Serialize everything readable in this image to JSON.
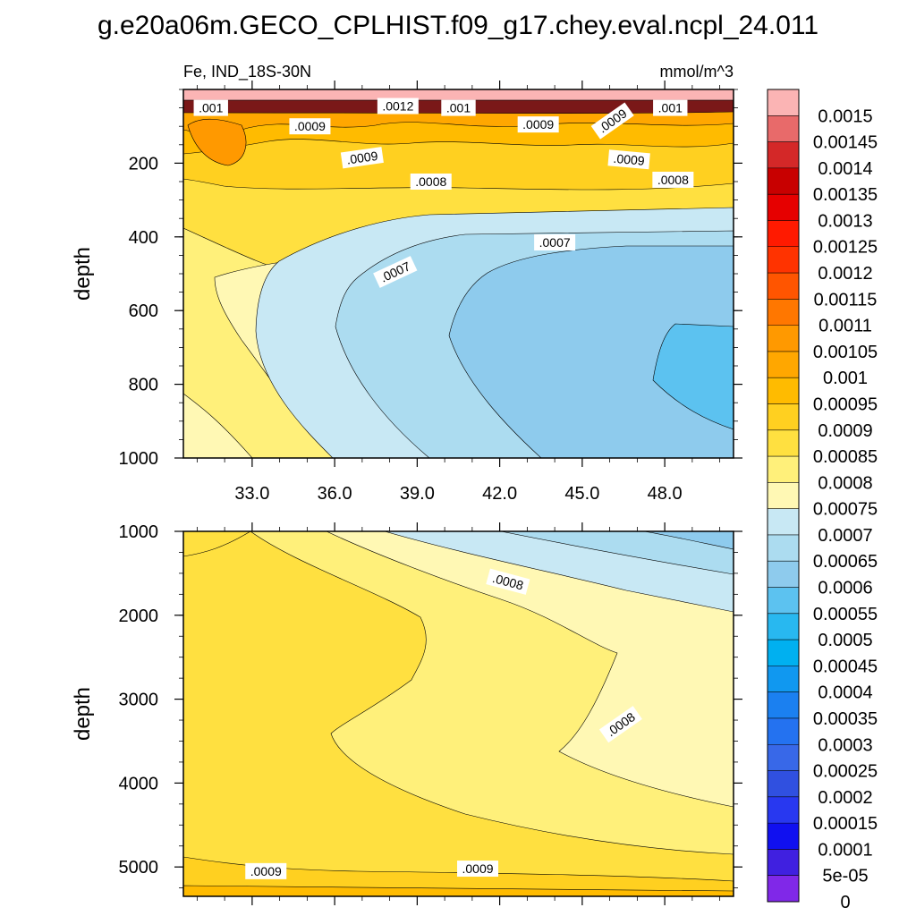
{
  "title": "g.e20a06m.GECO_CPLHIST.f09_g17.chey.eval.ncpl_24.011",
  "chart_data": [
    {
      "type": "contour",
      "panel": "upper",
      "variable_label": "Fe, IND_18S-30N",
      "units_label": "mmol/m^3",
      "xlabel": "",
      "ylabel": "depth",
      "xlim": [
        30.5,
        50.5
      ],
      "ylim": [
        1000,
        0
      ],
      "x_ticks": [
        "33.0",
        "36.0",
        "39.0",
        "42.0",
        "45.0",
        "48.0"
      ],
      "x_tick_values": [
        33,
        36,
        39,
        42,
        45,
        48
      ],
      "y_ticks": [
        "200",
        "400",
        "600",
        "800",
        "1000"
      ],
      "y_tick_values": [
        200,
        400,
        600,
        800,
        1000
      ],
      "contour_labels": [
        {
          "text": ".001",
          "x": 31.5,
          "y": 50,
          "angle": 0
        },
        {
          "text": ".0012",
          "x": 38.3,
          "y": 45,
          "angle": 0
        },
        {
          "text": ".001",
          "x": 40.5,
          "y": 50,
          "angle": 0
        },
        {
          "text": ".0009",
          "x": 35.1,
          "y": 100,
          "angle": 0
        },
        {
          "text": ".0009",
          "x": 43.4,
          "y": 95,
          "angle": 0
        },
        {
          "text": ".0009",
          "x": 46.1,
          "y": 85,
          "angle": -35
        },
        {
          "text": ".001",
          "x": 48.2,
          "y": 50,
          "angle": 0
        },
        {
          "text": ".0009",
          "x": 37.0,
          "y": 185,
          "angle": -8
        },
        {
          "text": ".0009",
          "x": 46.7,
          "y": 190,
          "angle": 5
        },
        {
          "text": ".0008",
          "x": 39.5,
          "y": 250,
          "angle": 0
        },
        {
          "text": ".0008",
          "x": 48.3,
          "y": 245,
          "angle": 0
        },
        {
          "text": ".0007",
          "x": 44.0,
          "y": 415,
          "angle": 0
        },
        {
          "text": ".0007",
          "x": 38.2,
          "y": 495,
          "angle": -25
        }
      ]
    },
    {
      "type": "contour",
      "panel": "lower",
      "xlabel": "",
      "ylabel": "depth",
      "xlim": [
        30.5,
        50.5
      ],
      "ylim": [
        5350,
        1000
      ],
      "x_ticks": [],
      "x_tick_values": [
        33,
        36,
        39,
        42,
        45,
        48
      ],
      "y_ticks": [
        "1000",
        "2000",
        "3000",
        "4000",
        "5000"
      ],
      "y_tick_values": [
        1000,
        2000,
        3000,
        4000,
        5000
      ],
      "contour_labels": [
        {
          "text": ".0008",
          "x": 42.3,
          "y": 1600,
          "angle": 15
        },
        {
          "text": ".0008",
          "x": 46.4,
          "y": 3300,
          "angle": -35
        },
        {
          "text": ".0009",
          "x": 33.5,
          "y": 5050,
          "angle": 0
        },
        {
          "text": ".0009",
          "x": 41.2,
          "y": 5020,
          "angle": 0
        }
      ]
    }
  ],
  "colorbar": {
    "levels": [
      "0.0015",
      "0.00145",
      "0.0014",
      "0.00135",
      "0.0013",
      "0.00125",
      "0.0012",
      "0.00115",
      "0.0011",
      "0.00105",
      "0.001",
      "0.00095",
      "0.0009",
      "0.00085",
      "0.0008",
      "0.00075",
      "0.0007",
      "0.00065",
      "0.0006",
      "0.00055",
      "0.0005",
      "0.00045",
      "0.0004",
      "0.00035",
      "0.0003",
      "0.00025",
      "0.0002",
      "0.00015",
      "0.0001",
      "5e-05",
      "0"
    ],
    "colors": [
      "#fbb4b4",
      "#e86a6a",
      "#d42828",
      "#c80000",
      "#e60000",
      "#ff1a00",
      "#ff3300",
      "#ff5500",
      "#ff7700",
      "#ff9900",
      "#ffa700",
      "#ffbb00",
      "#ffd020",
      "#ffe040",
      "#fff07a",
      "#fff8b4",
      "#c8e8f4",
      "#acdcf0",
      "#8ecbed",
      "#5cc2f0",
      "#28b8f0",
      "#00b0f0",
      "#1098f0",
      "#1b80f0",
      "#2472f0",
      "#3868e8",
      "#3050e0",
      "#2838f0",
      "#1010f0",
      "#4020e0",
      "#8028e8"
    ]
  }
}
